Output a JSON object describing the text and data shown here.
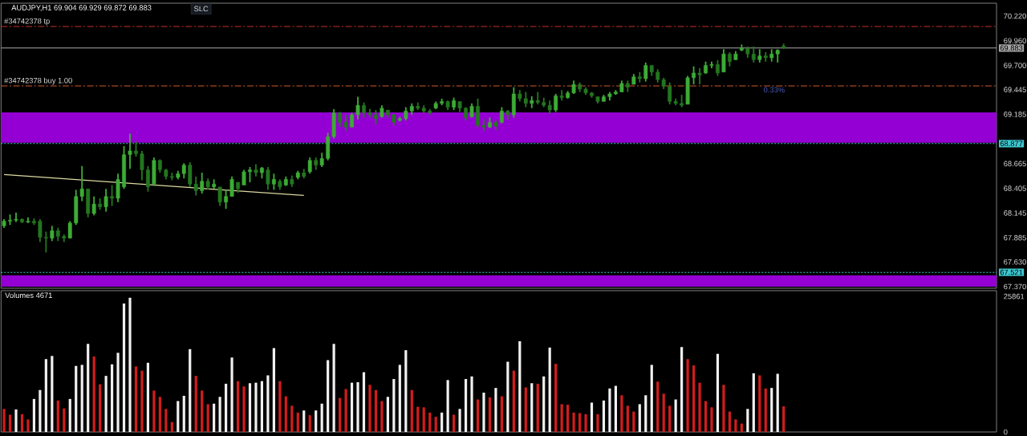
{
  "chart_data": [
    {
      "type": "candlestick",
      "title": "AUDJPY,H1 69.904 69.929 69.872 69.883",
      "categories": [
        null,
        null,
        null,
        null,
        null,
        null,
        null,
        null,
        null,
        null,
        null,
        null,
        null,
        null,
        null,
        null,
        null,
        null,
        null,
        null,
        null,
        null,
        null,
        null,
        null,
        null,
        null,
        null,
        null,
        null,
        null,
        null,
        null,
        null,
        null,
        null,
        null,
        null,
        null,
        null,
        null,
        null,
        null,
        null,
        null,
        null,
        null,
        null,
        null,
        null,
        null,
        null,
        null,
        null,
        null,
        null,
        null,
        null,
        null,
        null,
        null,
        null,
        null,
        null,
        null,
        null,
        null,
        null,
        null,
        null,
        null,
        null,
        null,
        null,
        null,
        null,
        null,
        null,
        null,
        null,
        null,
        null,
        null,
        null,
        null,
        null,
        null,
        null,
        null,
        null,
        null,
        null,
        null,
        null,
        null,
        null,
        null,
        null,
        null,
        null,
        null,
        null,
        null,
        null,
        null,
        null,
        null,
        null,
        null,
        null,
        null,
        null,
        null,
        null,
        null,
        null,
        null,
        null,
        null,
        null,
        null,
        null,
        null,
        null,
        null,
        null,
        null,
        null,
        null,
        null,
        null,
        null,
        null,
        null,
        null,
        null,
        null,
        null,
        null,
        null,
        null,
        null,
        null,
        null,
        null,
        null,
        null,
        null,
        null,
        null,
        null,
        null,
        null,
        null,
        null,
        null,
        null,
        null,
        null,
        null,
        null,
        null,
        null,
        null,
        null,
        null
      ],
      "series": [
        {
          "type": "candlestick",
          "color": "#3dab36",
          "colors": [
            "#3dab36",
            "#3dab36",
            "#3dab36",
            "#23761f",
            "#3dab36",
            "#23761f",
            "#23761f",
            "#23761f",
            "#3dab36",
            "#23761f",
            "#23761f",
            "#3dab36",
            "#3dab36",
            "#3dab36",
            "#23761f",
            "#3dab36",
            "#23761f",
            "#3dab36",
            "#23761f",
            "#3dab36",
            "#3dab36",
            "#3dab36",
            "#23761f",
            "#23761f",
            "#23761f",
            "#3dab36",
            "#23761f",
            "#23761f",
            "#23761f",
            "#3dab36",
            "#3dab36",
            "#23761f",
            "#23761f",
            "#3dab36",
            "#23761f",
            "#3dab36",
            "#23761f",
            "#3dab36",
            "#3dab36",
            "#23761f",
            "#3dab36",
            "#3dab36",
            "#23761f",
            "#3dab36",
            "#23761f",
            "#3dab36",
            "#23761f",
            "#3dab36",
            "#23761f",
            "#3dab36",
            "#23761f",
            "#3dab36",
            "#23761f",
            "#3dab36",
            "#3dab36",
            "#3dab36",
            "#23761f",
            "#23761f",
            "#3dab36",
            "#3dab36",
            "#23761f",
            "#23761f",
            "#23761f",
            "#3dab36",
            "#23761f",
            "#23761f",
            "#3dab36",
            "#3dab36",
            "#3dab36",
            "#23761f",
            "#23761f",
            "#23761f",
            "#3dab36",
            "#3dab36",
            "#23761f",
            "#3dab36",
            "#23761f",
            "#23761f",
            "#3dab36",
            "#23761f",
            "#23761f",
            "#3dab36",
            "#23761f",
            "#3dab36",
            "#23761f",
            "#3dab36",
            "#23761f",
            "#23761f",
            "#3dab36",
            "#23761f",
            "#23761f",
            "#23761f",
            "#3dab36",
            "#23761f",
            "#3dab36",
            "#3dab36",
            "#23761f",
            "#23761f",
            "#23761f",
            "#23761f",
            "#3dab36",
            "#3dab36",
            "#3dab36",
            "#3dab36",
            "#23761f",
            "#3dab36",
            "#23761f",
            "#3dab36",
            "#23761f",
            "#23761f",
            "#23761f",
            "#23761f",
            "#23761f",
            "#23761f",
            "#3dab36",
            "#3dab36",
            "#23761f",
            "#3dab36",
            "#3dab36",
            "#23761f",
            "#3dab36",
            "#23761f",
            "#3dab36",
            "#3dab36",
            "#23761f",
            "#23761f",
            "#3dab36",
            "#23761f",
            "#3dab36",
            "#3dab36",
            "#23761f",
            null,
            null,
            null,
            null,
            null,
            null,
            null,
            null,
            null,
            null,
            null,
            null,
            null,
            null,
            null,
            null,
            null,
            null,
            null,
            null,
            null,
            null,
            null,
            null,
            null,
            null,
            null,
            null,
            null,
            null,
            null,
            null,
            null,
            null,
            null
          ],
          "ohlc": [
            [
              68.01,
              68.08,
              67.99,
              68.06
            ],
            [
              68.06,
              68.13,
              68.02,
              68.07
            ],
            [
              68.07,
              68.15,
              68.05,
              68.08
            ],
            [
              68.08,
              68.09,
              68.04,
              68.05
            ],
            [
              68.05,
              68.1,
              68.04,
              68.06
            ],
            [
              68.06,
              68.09,
              68.02,
              68.04
            ],
            [
              68.06,
              68.08,
              67.84,
              67.89
            ],
            [
              67.89,
              67.95,
              67.73,
              67.88
            ],
            [
              67.88,
              68.01,
              67.85,
              67.96
            ],
            [
              67.96,
              67.99,
              67.85,
              67.9
            ],
            [
              67.9,
              67.92,
              67.84,
              67.88
            ],
            [
              67.88,
              68.06,
              67.88,
              68.04
            ],
            [
              68.04,
              68.39,
              68.02,
              68.32
            ],
            [
              68.32,
              68.64,
              68.27,
              68.4
            ],
            [
              68.4,
              68.4,
              68.1,
              68.14
            ],
            [
              68.14,
              68.32,
              68.12,
              68.24
            ],
            [
              68.24,
              68.3,
              68.18,
              68.21
            ],
            [
              68.21,
              68.4,
              68.16,
              68.32
            ],
            [
              68.32,
              68.44,
              68.22,
              68.3
            ],
            [
              68.3,
              68.56,
              68.26,
              68.5
            ],
            [
              68.42,
              68.85,
              68.4,
              68.76
            ],
            [
              68.76,
              68.98,
              68.61,
              68.8
            ],
            [
              68.8,
              68.9,
              68.74,
              68.77
            ],
            [
              68.77,
              68.8,
              68.49,
              68.6
            ],
            [
              68.6,
              68.64,
              68.37,
              68.42
            ],
            [
              68.45,
              68.73,
              68.43,
              68.7
            ],
            [
              68.7,
              68.71,
              68.57,
              68.6
            ],
            [
              68.6,
              68.61,
              68.5,
              68.53
            ],
            [
              68.53,
              68.57,
              68.49,
              68.52
            ],
            [
              68.52,
              68.59,
              68.5,
              68.56
            ],
            [
              68.56,
              68.67,
              68.51,
              68.65
            ],
            [
              68.65,
              68.68,
              68.42,
              68.45
            ],
            [
              68.45,
              68.53,
              68.33,
              68.38
            ],
            [
              68.38,
              68.57,
              68.35,
              68.48
            ],
            [
              68.48,
              68.51,
              68.39,
              68.42
            ],
            [
              68.42,
              68.5,
              68.4,
              68.45
            ],
            [
              68.42,
              68.42,
              68.22,
              68.26
            ],
            [
              68.26,
              68.39,
              68.19,
              68.32
            ],
            [
              68.32,
              68.53,
              68.32,
              68.5
            ],
            [
              68.47,
              68.47,
              68.36,
              68.4
            ],
            [
              68.44,
              68.6,
              68.44,
              68.58
            ],
            [
              68.58,
              68.63,
              68.47,
              68.6
            ],
            [
              68.6,
              68.66,
              68.53,
              68.57
            ],
            [
              68.57,
              68.63,
              68.51,
              68.62
            ],
            [
              68.6,
              68.63,
              68.39,
              68.45
            ],
            [
              68.45,
              68.56,
              68.39,
              68.5
            ],
            [
              68.48,
              68.5,
              68.39,
              68.42
            ],
            [
              68.44,
              68.53,
              68.43,
              68.5
            ],
            [
              68.5,
              68.54,
              68.42,
              68.45
            ],
            [
              68.52,
              68.59,
              68.5,
              68.57
            ],
            [
              68.57,
              68.61,
              68.51,
              68.53
            ],
            [
              68.58,
              68.73,
              68.56,
              68.7
            ],
            [
              68.7,
              68.73,
              68.6,
              68.65
            ],
            [
              68.65,
              68.78,
              68.63,
              68.72
            ],
            [
              68.72,
              68.99,
              68.7,
              68.95
            ],
            [
              68.95,
              69.24,
              68.93,
              69.2
            ],
            [
              69.2,
              69.21,
              69.05,
              69.1
            ],
            [
              69.1,
              69.18,
              69.01,
              69.05
            ],
            [
              69.05,
              69.2,
              69.05,
              69.18
            ],
            [
              69.18,
              69.37,
              69.13,
              69.28
            ],
            [
              69.28,
              69.31,
              69.15,
              69.2
            ],
            [
              69.2,
              69.24,
              69.15,
              69.18
            ],
            [
              69.18,
              69.23,
              69.08,
              69.14
            ],
            [
              69.16,
              69.28,
              69.15,
              69.25
            ],
            [
              69.23,
              69.23,
              69.15,
              69.18
            ],
            [
              69.18,
              69.19,
              69.07,
              69.1
            ],
            [
              69.12,
              69.16,
              69.11,
              69.14
            ],
            [
              69.14,
              69.26,
              69.12,
              69.22
            ],
            [
              69.22,
              69.3,
              69.18,
              69.27
            ],
            [
              69.27,
              69.31,
              69.23,
              69.25
            ],
            [
              69.25,
              69.28,
              69.2,
              69.22
            ],
            [
              69.22,
              69.24,
              69.18,
              69.2
            ],
            [
              69.25,
              69.32,
              69.24,
              69.3
            ],
            [
              69.3,
              69.35,
              69.28,
              69.32
            ],
            [
              69.32,
              69.33,
              69.23,
              69.26
            ],
            [
              69.26,
              69.36,
              69.23,
              69.33
            ],
            [
              69.32,
              69.32,
              69.21,
              69.25
            ],
            [
              69.25,
              69.26,
              69.12,
              69.15
            ],
            [
              69.16,
              69.3,
              69.15,
              69.27
            ],
            [
              69.27,
              69.35,
              69.05,
              69.07
            ],
            [
              69.07,
              69.13,
              69.01,
              69.05
            ],
            [
              69.05,
              69.15,
              69.04,
              69.1
            ],
            [
              69.1,
              69.12,
              69.02,
              69.06
            ],
            [
              69.1,
              69.26,
              69.09,
              69.22
            ],
            [
              69.22,
              69.23,
              69.13,
              69.18
            ],
            [
              69.18,
              69.47,
              69.15,
              69.4
            ],
            [
              69.4,
              69.44,
              69.32,
              69.35
            ],
            [
              69.35,
              69.42,
              69.26,
              69.3
            ],
            [
              69.3,
              69.375,
              69.25,
              69.33
            ],
            [
              69.33,
              69.42,
              69.29,
              69.31
            ],
            [
              69.31,
              69.36,
              69.26,
              69.28
            ],
            [
              69.28,
              69.33,
              69.19,
              69.23
            ],
            [
              69.23,
              69.4,
              69.21,
              69.38
            ],
            [
              69.38,
              69.44,
              69.33,
              69.36
            ],
            [
              69.36,
              69.43,
              69.35,
              69.41
            ],
            [
              69.41,
              69.54,
              69.4,
              69.5
            ],
            [
              69.5,
              69.52,
              69.42,
              69.45
            ],
            [
              69.45,
              69.47,
              69.39,
              69.41
            ],
            [
              69.41,
              69.42,
              69.36,
              69.38
            ],
            [
              69.37,
              69.375,
              69.3,
              69.32
            ],
            [
              69.32,
              69.39,
              69.32,
              69.37
            ],
            [
              69.37,
              69.42,
              69.33,
              69.4
            ],
            [
              69.4,
              69.44,
              69.39,
              69.42
            ],
            [
              69.42,
              69.54,
              69.42,
              69.51
            ],
            [
              69.51,
              69.54,
              69.42,
              69.47
            ],
            [
              69.5,
              69.61,
              69.5,
              69.58
            ],
            [
              69.58,
              69.63,
              69.52,
              69.56
            ],
            [
              69.56,
              69.73,
              69.53,
              69.7
            ],
            [
              69.7,
              69.7,
              69.59,
              69.63
            ],
            [
              69.63,
              69.66,
              69.52,
              69.55
            ],
            [
              69.55,
              69.57,
              69.45,
              69.48
            ],
            [
              69.48,
              69.52,
              69.29,
              69.32
            ],
            [
              69.32,
              69.35,
              69.28,
              69.3
            ],
            [
              69.3,
              69.39,
              69.26,
              69.28
            ],
            [
              69.29,
              69.59,
              69.29,
              69.57
            ],
            [
              69.57,
              69.69,
              69.5,
              69.62
            ],
            [
              69.62,
              69.67,
              69.5,
              69.6
            ],
            [
              69.62,
              69.74,
              69.61,
              69.7
            ],
            [
              69.7,
              69.74,
              69.67,
              69.71
            ],
            [
              69.71,
              69.755,
              69.59,
              69.62
            ],
            [
              69.63,
              69.87,
              69.63,
              69.82
            ],
            [
              69.82,
              69.84,
              69.69,
              69.74
            ],
            [
              69.76,
              69.85,
              69.755,
              69.82
            ],
            [
              69.86,
              69.92,
              69.85,
              69.88
            ],
            [
              69.88,
              69.9,
              69.78,
              69.82
            ],
            [
              69.82,
              69.9,
              69.73,
              69.76
            ],
            [
              69.76,
              69.87,
              69.73,
              69.8
            ],
            [
              69.8,
              69.84,
              69.74,
              69.78
            ],
            [
              69.78,
              69.87,
              69.74,
              69.82
            ],
            [
              69.82,
              69.87,
              69.73,
              69.86
            ],
            [
              69.904,
              69.929,
              69.872,
              69.883
            ],
            null,
            null,
            null,
            null,
            null,
            null,
            null,
            null,
            null,
            null,
            null,
            null,
            null,
            null,
            null,
            null,
            null,
            null,
            null,
            null,
            null,
            null,
            null,
            null,
            null,
            null,
            null,
            null,
            null,
            null,
            null,
            null,
            null,
            null,
            null
          ]
        },
        {
          "type": "line",
          "color": "#dcd8a0",
          "values": [
            68.55,
            null,
            null,
            null,
            null,
            null,
            null,
            null,
            null,
            null,
            null,
            null,
            null,
            null,
            null,
            null,
            null,
            null,
            null,
            null,
            null,
            null,
            null,
            null,
            null,
            null,
            null,
            null,
            null,
            null,
            null,
            null,
            null,
            null,
            null,
            null,
            null,
            null,
            null,
            null,
            null,
            null,
            null,
            null,
            null,
            null,
            null,
            null,
            null,
            null,
            68.33,
            null,
            null,
            null,
            null,
            null,
            null,
            null,
            null,
            null,
            null,
            null,
            null,
            null,
            null,
            null,
            null,
            null,
            null,
            null,
            null,
            null,
            null,
            null,
            null,
            null,
            null,
            null,
            null,
            null,
            null,
            null,
            null,
            null,
            null,
            null,
            null,
            null,
            null,
            null,
            null,
            null,
            null,
            null,
            null,
            null,
            null,
            null,
            null,
            null,
            null,
            null,
            null,
            null,
            null,
            null,
            null,
            null,
            null,
            null,
            null,
            null,
            null,
            null,
            null,
            null,
            null,
            null,
            null,
            null,
            null,
            null,
            null,
            null,
            null,
            null,
            null,
            null,
            null,
            null,
            null,
            null,
            null,
            null,
            null,
            null,
            null,
            null,
            null,
            null,
            null,
            null,
            null,
            null,
            null,
            null,
            null,
            null,
            null,
            null,
            null,
            null,
            null,
            null,
            null,
            null,
            null,
            null,
            null,
            null,
            null,
            null,
            null,
            null,
            null,
            null
          ]
        }
      ],
      "ylim": [
        67.353,
        70.355
      ],
      "yticks": [
        {
          "value": 70.22,
          "label": "70.220"
        },
        {
          "value": 69.96,
          "label": "69.960"
        },
        {
          "value": 69.7,
          "label": "69.700"
        },
        69.445,
        69.185,
        68.665,
        68.405,
        68.145,
        67.885,
        {
          "value": 67.63,
          "label": "67.630"
        },
        {
          "value": 67.37,
          "label": "67.370"
        }
      ],
      "tick_labels": "y",
      "ref_lines": [
        {
          "axis": "y",
          "value": 70.11,
          "label": "#34742378 tp",
          "color": "#c0302c",
          "line_style": "dashed"
        },
        {
          "axis": "y",
          "value": 69.883,
          "label": "69.883",
          "color": "#a8a8a8",
          "line_style": "solid"
        },
        {
          "axis": "y",
          "value": 69.484,
          "label": "#34742378 buy 1.00",
          "color": "#d0582a",
          "line_style": "dashed"
        },
        {
          "axis": "y",
          "value": 68.877,
          "label": "68.877",
          "color": "#3ec8d0",
          "line_style": "dotted"
        },
        {
          "axis": "y",
          "value": 67.521,
          "label": "67.521",
          "color": "#3ec8d0",
          "line_style": "dotted"
        }
      ],
      "bands": [
        {
          "axis": "y",
          "from": 68.885,
          "to": 69.205,
          "color": "#9400d3"
        },
        {
          "axis": "y",
          "from": 67.37,
          "to": 67.488,
          "color": "#9400d3"
        }
      ],
      "annotations": [
        "SLC",
        {
          "text": "0.33%",
          "y": 69.484
        }
      ]
    },
    {
      "type": "bar",
      "title": "Volumes 4671",
      "categories": [
        null,
        null,
        null,
        null,
        null,
        null,
        null,
        null,
        null,
        null,
        null,
        null,
        null,
        null,
        null,
        null,
        null,
        null,
        null,
        null,
        null,
        null,
        null,
        null,
        null,
        null,
        null,
        null,
        null,
        null,
        null,
        null,
        null,
        null,
        null,
        null,
        null,
        null,
        null,
        null,
        null,
        null,
        null,
        null,
        null,
        null,
        null,
        null,
        null,
        null,
        null,
        null,
        null,
        null,
        null,
        null,
        null,
        null,
        null,
        null,
        null,
        null,
        null,
        null,
        null,
        null,
        null,
        null,
        null,
        null,
        null,
        null,
        null,
        null,
        null,
        null,
        null,
        null,
        null,
        null,
        null,
        null,
        null,
        null,
        null,
        null,
        null,
        null,
        null,
        null,
        null,
        null,
        null,
        null,
        null,
        null,
        null,
        null,
        null,
        null,
        null,
        null,
        null,
        null,
        null,
        null,
        null,
        null,
        null,
        null,
        null,
        null,
        null,
        null,
        null,
        null,
        null,
        null,
        null,
        null,
        null,
        null,
        null,
        null,
        null,
        null,
        null,
        null,
        null,
        null,
        null,
        null,
        null,
        null,
        null,
        null,
        null,
        null,
        null,
        null,
        null,
        null,
        null,
        null,
        null,
        null,
        null,
        null,
        null,
        null,
        null,
        null,
        null,
        null,
        null,
        null,
        null,
        null,
        null,
        null,
        null,
        null,
        null,
        null,
        null,
        null
      ],
      "values": [
        4400,
        3300,
        4300,
        3400,
        2400,
        6300,
        8000,
        13900,
        14500,
        6000,
        4500,
        6300,
        12600,
        12800,
        16800,
        14400,
        9100,
        10700,
        12900,
        15100,
        24500,
        25600,
        12500,
        11700,
        13200,
        7900,
        6700,
        4400,
        1900,
        5900,
        6900,
        15800,
        10700,
        7900,
        5300,
        5400,
        6700,
        9200,
        14200,
        9700,
        8700,
        9300,
        9400,
        9700,
        10800,
        16000,
        9700,
        6800,
        5000,
        3700,
        4100,
        3200,
        4100,
        5400,
        13700,
        16800,
        6500,
        8200,
        9400,
        9500,
        11400,
        9000,
        8000,
        5900,
        6700,
        10100,
        12800,
        15600,
        8000,
        4800,
        4700,
        3700,
        2900,
        3700,
        9900,
        3300,
        4400,
        10100,
        10600,
        6200,
        7500,
        6600,
        8400,
        6800,
        13400,
        11700,
        17300,
        8500,
        9300,
        9200,
        10600,
        16100,
        13000,
        5300,
        5200,
        3700,
        3600,
        3400,
        5600,
        3400,
        6000,
        8300,
        8800,
        7000,
        5000,
        3900,
        5300,
        7000,
        12800,
        9600,
        7300,
        5000,
        6200,
        16200,
        13900,
        12700,
        9400,
        5900,
        4700,
        14900,
        9000,
        3900,
        2400,
        1600,
        4400,
        11200,
        10800,
        8300,
        8400,
        11100,
        4900,
        null,
        null,
        null,
        null,
        null,
        null,
        null,
        null,
        null,
        null,
        null,
        null,
        null,
        null,
        null,
        null,
        null,
        null,
        null,
        null,
        null,
        null,
        null,
        null,
        null,
        null,
        null,
        null,
        null,
        null,
        null,
        null,
        null,
        null,
        null
      ],
      "colors": [
        "#d41c1c",
        "#d41c1c",
        "#f0f0f0",
        "#d41c1c",
        "#d41c1c",
        "#f0f0f0",
        "#f0f0f0",
        "#f0f0f0",
        "#f0f0f0",
        "#d41c1c",
        "#d41c1c",
        "#f0f0f0",
        "#f0f0f0",
        "#f0f0f0",
        "#f0f0f0",
        "#d41c1c",
        "#d41c1c",
        "#f0f0f0",
        "#f0f0f0",
        "#f0f0f0",
        "#f0f0f0",
        "#f0f0f0",
        "#d41c1c",
        "#d41c1c",
        "#f0f0f0",
        "#d41c1c",
        "#d41c1c",
        "#d41c1c",
        "#d41c1c",
        "#f0f0f0",
        "#f0f0f0",
        "#f0f0f0",
        "#d41c1c",
        "#d41c1c",
        "#d41c1c",
        "#f0f0f0",
        "#f0f0f0",
        "#f0f0f0",
        "#f0f0f0",
        "#d41c1c",
        "#d41c1c",
        "#f0f0f0",
        "#f0f0f0",
        "#f0f0f0",
        "#f0f0f0",
        "#f0f0f0",
        "#d41c1c",
        "#d41c1c",
        "#d41c1c",
        "#d41c1c",
        "#f0f0f0",
        "#d41c1c",
        "#f0f0f0",
        "#f0f0f0",
        "#f0f0f0",
        "#f0f0f0",
        "#d41c1c",
        "#d41c1c",
        "#f0f0f0",
        "#f0f0f0",
        "#f0f0f0",
        "#d41c1c",
        "#d41c1c",
        "#d41c1c",
        "#f0f0f0",
        "#f0f0f0",
        "#f0f0f0",
        "#f0f0f0",
        "#d41c1c",
        "#d41c1c",
        "#d41c1c",
        "#d41c1c",
        "#d41c1c",
        "#f0f0f0",
        "#f0f0f0",
        "#d41c1c",
        "#f0f0f0",
        "#f0f0f0",
        "#f0f0f0",
        "#d41c1c",
        "#f0f0f0",
        "#d41c1c",
        "#f0f0f0",
        "#d41c1c",
        "#f0f0f0",
        "#d41c1c",
        "#f0f0f0",
        "#d41c1c",
        "#f0f0f0",
        "#d41c1c",
        "#f0f0f0",
        "#f0f0f0",
        "#d41c1c",
        "#d41c1c",
        "#d41c1c",
        "#d41c1c",
        "#d41c1c",
        "#d41c1c",
        "#f0f0f0",
        "#d41c1c",
        "#f0f0f0",
        "#f0f0f0",
        "#f0f0f0",
        "#d41c1c",
        "#d41c1c",
        "#d41c1c",
        "#f0f0f0",
        "#f0f0f0",
        "#f0f0f0",
        "#d41c1c",
        "#d41c1c",
        "#d41c1c",
        "#f0f0f0",
        "#f0f0f0",
        "#d41c1c",
        "#d41c1c",
        "#d41c1c",
        "#d41c1c",
        "#d41c1c",
        "#f0f0f0",
        "#d41c1c",
        "#d41c1c",
        "#d41c1c",
        "#d41c1c",
        "#f0f0f0",
        "#f0f0f0",
        "#d41c1c",
        "#d41c1c",
        "#f0f0f0",
        "#f0f0f0",
        "#d41c1c",
        null,
        null,
        null,
        null,
        null,
        null,
        null,
        null,
        null,
        null,
        null,
        null,
        null,
        null,
        null,
        null,
        null,
        null,
        null,
        null,
        null,
        null,
        null,
        null,
        null,
        null,
        null,
        null,
        null,
        null,
        null,
        null,
        null,
        null,
        null
      ],
      "ylim": [
        0,
        26950
      ],
      "yticks": [
        0,
        25861
      ],
      "tick_labels": "y"
    }
  ]
}
